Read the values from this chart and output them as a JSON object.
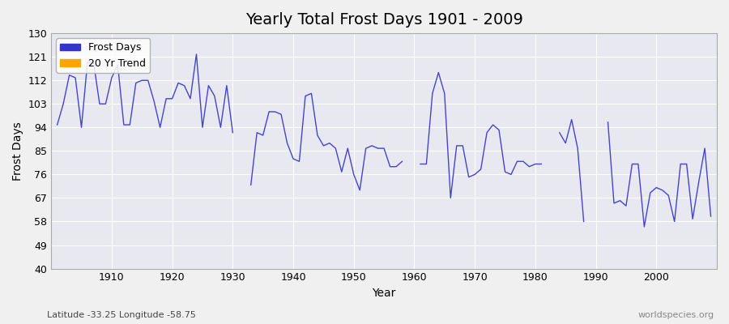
{
  "title": "Yearly Total Frost Days 1901 - 2009",
  "xlabel": "Year",
  "ylabel": "Frost Days",
  "subtitle": "Latitude -33.25 Longitude -58.75",
  "watermark": "worldspecies.org",
  "legend_entries": [
    "Frost Days",
    "20 Yr Trend"
  ],
  "legend_colors": [
    "#3333cc",
    "#FFA500"
  ],
  "line_color": "#4444cc",
  "bg_color": "#e8e8f0",
  "plot_bg_color": "#e8e8f0",
  "ylim": [
    40,
    130
  ],
  "yticks": [
    40,
    49,
    58,
    67,
    76,
    85,
    94,
    103,
    112,
    121,
    130
  ],
  "years": [
    1901,
    1902,
    1903,
    1904,
    1905,
    1906,
    1907,
    1908,
    1909,
    1910,
    1911,
    1912,
    1913,
    1914,
    1915,
    1916,
    1917,
    1918,
    1919,
    1920,
    1921,
    1922,
    1923,
    1924,
    1925,
    1926,
    1927,
    1928,
    1929,
    1930,
    1931,
    1932,
    1933,
    1934,
    1935,
    1936,
    1937,
    1938,
    1939,
    1940,
    1941,
    1942,
    1943,
    1944,
    1945,
    1946,
    1947,
    1948,
    1949,
    1950,
    1951,
    1952,
    1953,
    1954,
    1955,
    1956,
    1957,
    1958,
    1959,
    1960,
    1961,
    1962,
    1963,
    1964,
    1965,
    1966,
    1967,
    1968,
    1969,
    1970,
    1971,
    1972,
    1973,
    1974,
    1975,
    1976,
    1977,
    1978,
    1979,
    1980,
    1981,
    1982,
    1983,
    1984,
    1985,
    1986,
    1987,
    1988,
    1989,
    1990,
    1991,
    1992,
    1993,
    1994,
    1995,
    1996,
    1997,
    1998,
    1999,
    2000,
    2001,
    2002,
    2003,
    2004,
    2005,
    2006,
    2007,
    2008,
    2009
  ],
  "values": [
    95,
    103,
    114,
    113,
    94,
    119,
    119,
    103,
    103,
    113,
    118,
    95,
    95,
    111,
    112,
    112,
    104,
    94,
    105,
    105,
    111,
    110,
    105,
    122,
    94,
    110,
    106,
    94,
    110,
    92,
    null,
    null,
    72,
    92,
    91,
    100,
    100,
    99,
    88,
    82,
    81,
    106,
    107,
    91,
    87,
    88,
    86,
    77,
    86,
    76,
    70,
    86,
    87,
    86,
    86,
    79,
    79,
    81,
    null,
    null,
    80,
    80,
    107,
    115,
    107,
    67,
    87,
    87,
    75,
    76,
    78,
    92,
    95,
    93,
    77,
    76,
    81,
    81,
    79,
    80,
    80,
    null,
    null,
    92,
    88,
    97,
    86,
    58,
    null,
    null,
    null,
    96,
    65,
    66,
    64,
    80,
    80,
    56,
    69,
    71,
    70,
    68,
    58,
    80,
    80,
    59,
    73,
    86,
    60
  ]
}
